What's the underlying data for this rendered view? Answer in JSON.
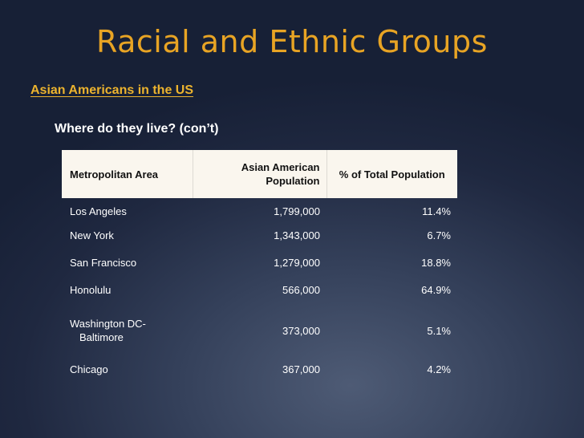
{
  "slide": {
    "title": "Racial and Ethnic Groups",
    "subtitle": "Asian Americans in the US",
    "bullet": "Where do they live? (con’t)"
  },
  "table": {
    "headers": {
      "area": "Metropolitan Area",
      "population": "Asian American Population",
      "percent": "% of Total Population"
    },
    "rows": [
      {
        "area": "Los Angeles",
        "population": "1,799,000",
        "percent": "11.4%"
      },
      {
        "area": "New York",
        "population": "1,343,000",
        "percent": "6.7%"
      },
      {
        "area": "San Francisco",
        "population": "1,279,000",
        "percent": "18.8%"
      },
      {
        "area": "Honolulu",
        "population": "566,000",
        "percent": "64.9%"
      },
      {
        "area": "Washington DC-",
        "area_cont": "Baltimore",
        "population": "373,000",
        "percent": "5.1%"
      },
      {
        "area": "Chicago",
        "population": "367,000",
        "percent": "4.2%"
      }
    ]
  },
  "colors": {
    "title": "#e8a424",
    "subtitle": "#ecb32e",
    "header_bg": "#faf6ee",
    "background": "#2a344d"
  }
}
